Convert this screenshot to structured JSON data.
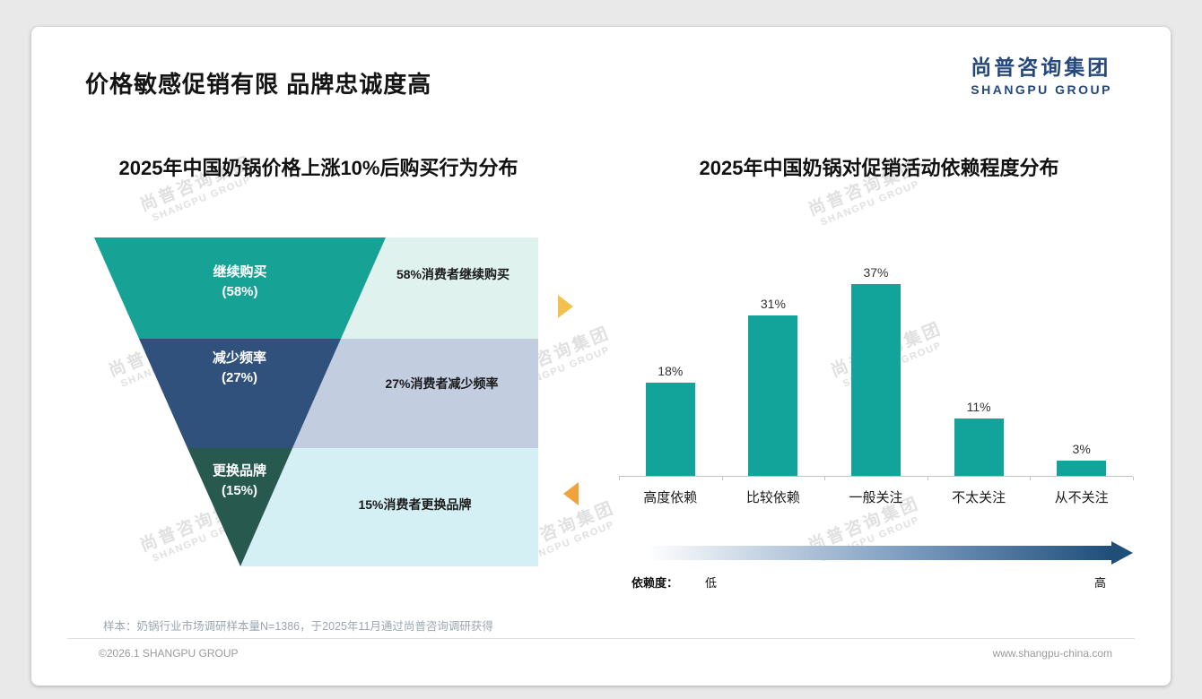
{
  "page": {
    "title": "价格敏感促销有限 品牌忠诚度高",
    "logo": {
      "cn": "尚普咨询集团",
      "en": "SHANGPU GROUP",
      "color": "#26477C"
    },
    "watermark": {
      "cn": "尚普咨询集团",
      "en": "SHANGPU GROUP"
    },
    "accents": {
      "funnel_arrow_right": "#F2C14E",
      "funnel_arrow_left": "#F0A23C"
    },
    "footer": {
      "sample_note": "样本：奶锅行业市场调研样本量N=1386，于2025年11月通过尚普咨询调研获得",
      "copyright": "©2026.1 SHANGPU GROUP",
      "website": "www.shangpu-china.com"
    }
  },
  "chart_data": [
    {
      "type": "funnel",
      "title": "2025年中国奶锅价格上涨10%后购买行为分布",
      "stages": [
        {
          "name": "继续购买",
          "value": 58,
          "pct_label": "(58%)",
          "annotation": "58%消费者继续购买",
          "color": "#16A294",
          "panel_color": "#DFF2EE"
        },
        {
          "name": "减少频率",
          "value": 27,
          "pct_label": "(27%)",
          "annotation": "27%消费者减少频率",
          "color": "#31517D",
          "panel_color": "#C3CDE0"
        },
        {
          "name": "更换品牌",
          "value": 15,
          "pct_label": "(15%)",
          "annotation": "15%消费者更换品牌",
          "color": "#27594E",
          "panel_color": "#D5F0F5"
        }
      ]
    },
    {
      "type": "bar",
      "title": "2025年中国奶锅对促销活动依赖程度分布",
      "categories": [
        "高度依赖",
        "比较依赖",
        "一般关注",
        "不太关注",
        "从不关注"
      ],
      "values": [
        18,
        31,
        37,
        11,
        3
      ],
      "value_labels": [
        "18%",
        "31%",
        "37%",
        "11%",
        "3%"
      ],
      "bar_color": "#12A39B",
      "ylim": [
        0,
        40
      ],
      "grid": false,
      "legend_position": "none",
      "dependency_legend": {
        "label": "依赖度：",
        "low": "低",
        "high": "高",
        "gradient_from": "#FFFFFF",
        "gradient_mid": "#7E9EC1",
        "gradient_to": "#1F4E79"
      }
    }
  ]
}
